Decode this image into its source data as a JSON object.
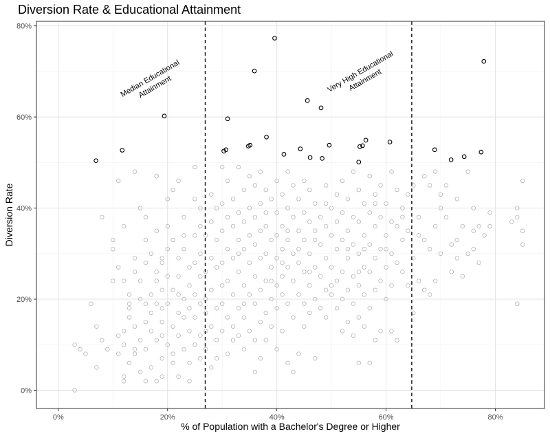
{
  "chart_data": {
    "type": "scatter",
    "title": "Diversion Rate & Educational Attainment",
    "xlabel": "% of Population with a Bachelor's Degree or Higher",
    "ylabel": "Diversion Rate",
    "xlim": [
      -0.04,
      0.89
    ],
    "ylim": [
      -0.04,
      0.81
    ],
    "x_ticks": [
      0,
      0.2,
      0.4,
      0.6,
      0.8
    ],
    "x_tick_labels": [
      "0%",
      "20%",
      "40%",
      "60%",
      "80%"
    ],
    "y_ticks": [
      0,
      0.2,
      0.4,
      0.6,
      0.8
    ],
    "y_tick_labels": [
      "0%",
      "20%",
      "40%",
      "60%",
      "80%"
    ],
    "grid": true,
    "reference_lines": [
      {
        "x": 0.269,
        "style": "dashed",
        "label": [
          "Median Educational",
          "Attainment"
        ]
      },
      {
        "x": 0.647,
        "style": "dashed",
        "label": [
          "Very High Educational",
          "Attainment"
        ]
      }
    ],
    "highlight_color": "#000000",
    "background_point_color": "#b3b3b3",
    "highlighted_points": [
      {
        "x": 0.069,
        "y": 0.504
      },
      {
        "x": 0.117,
        "y": 0.527
      },
      {
        "x": 0.194,
        "y": 0.602
      },
      {
        "x": 0.303,
        "y": 0.525
      },
      {
        "x": 0.307,
        "y": 0.528
      },
      {
        "x": 0.31,
        "y": 0.596
      },
      {
        "x": 0.348,
        "y": 0.536
      },
      {
        "x": 0.351,
        "y": 0.538
      },
      {
        "x": 0.359,
        "y": 0.701
      },
      {
        "x": 0.381,
        "y": 0.556
      },
      {
        "x": 0.396,
        "y": 0.773
      },
      {
        "x": 0.413,
        "y": 0.518
      },
      {
        "x": 0.443,
        "y": 0.53
      },
      {
        "x": 0.456,
        "y": 0.636
      },
      {
        "x": 0.461,
        "y": 0.511
      },
      {
        "x": 0.481,
        "y": 0.62
      },
      {
        "x": 0.483,
        "y": 0.509
      },
      {
        "x": 0.496,
        "y": 0.538
      },
      {
        "x": 0.55,
        "y": 0.501
      },
      {
        "x": 0.552,
        "y": 0.535
      },
      {
        "x": 0.557,
        "y": 0.537
      },
      {
        "x": 0.563,
        "y": 0.549
      },
      {
        "x": 0.607,
        "y": 0.545
      },
      {
        "x": 0.689,
        "y": 0.528
      },
      {
        "x": 0.719,
        "y": 0.506
      },
      {
        "x": 0.743,
        "y": 0.513
      },
      {
        "x": 0.774,
        "y": 0.523
      },
      {
        "x": 0.779,
        "y": 0.722
      }
    ],
    "background_points": [
      [
        0.03,
        0.0
      ],
      [
        0.03,
        0.1
      ],
      [
        0.04,
        0.09
      ],
      [
        0.05,
        0.08
      ],
      [
        0.06,
        0.19
      ],
      [
        0.07,
        0.14
      ],
      [
        0.07,
        0.05
      ],
      [
        0.08,
        0.11
      ],
      [
        0.08,
        0.38
      ],
      [
        0.09,
        0.09
      ],
      [
        0.1,
        0.24
      ],
      [
        0.1,
        0.31
      ],
      [
        0.11,
        0.27
      ],
      [
        0.11,
        0.08
      ],
      [
        0.11,
        0.46
      ],
      [
        0.12,
        0.03
      ],
      [
        0.12,
        0.02
      ],
      [
        0.12,
        0.1
      ],
      [
        0.12,
        0.13
      ],
      [
        0.12,
        0.36
      ],
      [
        0.13,
        0.21
      ],
      [
        0.13,
        0.18
      ],
      [
        0.13,
        0.16
      ],
      [
        0.13,
        0.06
      ],
      [
        0.14,
        0.48
      ],
      [
        0.14,
        0.29
      ],
      [
        0.14,
        0.26
      ],
      [
        0.14,
        0.14
      ],
      [
        0.14,
        0.08
      ],
      [
        0.15,
        0.4
      ],
      [
        0.15,
        0.2
      ],
      [
        0.15,
        0.11
      ],
      [
        0.15,
        0.04
      ],
      [
        0.16,
        0.38
      ],
      [
        0.16,
        0.33
      ],
      [
        0.16,
        0.28
      ],
      [
        0.16,
        0.02
      ],
      [
        0.16,
        0.15
      ],
      [
        0.16,
        0.09
      ],
      [
        0.17,
        0.3
      ],
      [
        0.17,
        0.21
      ],
      [
        0.17,
        0.17
      ],
      [
        0.17,
        0.13
      ],
      [
        0.17,
        0.05
      ],
      [
        0.18,
        0.47
      ],
      [
        0.18,
        0.35
      ],
      [
        0.18,
        0.26
      ],
      [
        0.18,
        0.24
      ],
      [
        0.18,
        0.19
      ],
      [
        0.18,
        0.11
      ],
      [
        0.19,
        0.28
      ],
      [
        0.19,
        0.22
      ],
      [
        0.19,
        0.18
      ],
      [
        0.19,
        0.15
      ],
      [
        0.19,
        0.12
      ],
      [
        0.19,
        0.07
      ],
      [
        0.19,
        0.03
      ],
      [
        0.2,
        0.42
      ],
      [
        0.2,
        0.36
      ],
      [
        0.2,
        0.31
      ],
      [
        0.2,
        0.19
      ],
      [
        0.2,
        0.1
      ],
      [
        0.21,
        0.44
      ],
      [
        0.21,
        0.33
      ],
      [
        0.21,
        0.22
      ],
      [
        0.21,
        0.14
      ],
      [
        0.21,
        0.06
      ],
      [
        0.22,
        0.46
      ],
      [
        0.22,
        0.29
      ],
      [
        0.22,
        0.25
      ],
      [
        0.22,
        0.17
      ],
      [
        0.22,
        0.12
      ],
      [
        0.22,
        0.03
      ],
      [
        0.23,
        0.38
      ],
      [
        0.23,
        0.31
      ],
      [
        0.23,
        0.2
      ],
      [
        0.23,
        0.16
      ],
      [
        0.23,
        0.09
      ],
      [
        0.24,
        0.27
      ],
      [
        0.24,
        0.23
      ],
      [
        0.24,
        0.18
      ],
      [
        0.24,
        0.13
      ],
      [
        0.24,
        0.02
      ],
      [
        0.25,
        0.49
      ],
      [
        0.25,
        0.42
      ],
      [
        0.25,
        0.34
      ],
      [
        0.25,
        0.28
      ],
      [
        0.25,
        0.21
      ],
      [
        0.25,
        0.16
      ],
      [
        0.25,
        0.1
      ],
      [
        0.26,
        0.36
      ],
      [
        0.26,
        0.3
      ],
      [
        0.26,
        0.25
      ],
      [
        0.26,
        0.19
      ],
      [
        0.26,
        0.12
      ],
      [
        0.26,
        0.07
      ],
      [
        0.27,
        0.34
      ],
      [
        0.27,
        0.26
      ],
      [
        0.27,
        0.17
      ],
      [
        0.27,
        0.09
      ],
      [
        0.28,
        0.43
      ],
      [
        0.28,
        0.37
      ],
      [
        0.28,
        0.29
      ],
      [
        0.28,
        0.22
      ],
      [
        0.28,
        0.14
      ],
      [
        0.28,
        0.05
      ],
      [
        0.29,
        0.4
      ],
      [
        0.29,
        0.33
      ],
      [
        0.29,
        0.27
      ],
      [
        0.29,
        0.18
      ],
      [
        0.29,
        0.11
      ],
      [
        0.3,
        0.49
      ],
      [
        0.3,
        0.35
      ],
      [
        0.3,
        0.28
      ],
      [
        0.3,
        0.23
      ],
      [
        0.3,
        0.19
      ],
      [
        0.3,
        0.13
      ],
      [
        0.31,
        0.38
      ],
      [
        0.31,
        0.31
      ],
      [
        0.31,
        0.24
      ],
      [
        0.31,
        0.16
      ],
      [
        0.31,
        0.08
      ],
      [
        0.32,
        0.42
      ],
      [
        0.32,
        0.36
      ],
      [
        0.32,
        0.29
      ],
      [
        0.32,
        0.21
      ],
      [
        0.32,
        0.14
      ],
      [
        0.32,
        0.11
      ],
      [
        0.33,
        0.49
      ],
      [
        0.33,
        0.39
      ],
      [
        0.33,
        0.33
      ],
      [
        0.33,
        0.26
      ],
      [
        0.33,
        0.18
      ],
      [
        0.33,
        0.12
      ],
      [
        0.34,
        0.44
      ],
      [
        0.34,
        0.37
      ],
      [
        0.34,
        0.31
      ],
      [
        0.34,
        0.23
      ],
      [
        0.34,
        0.16
      ],
      [
        0.34,
        0.09
      ],
      [
        0.35,
        0.47
      ],
      [
        0.35,
        0.4
      ],
      [
        0.35,
        0.34
      ],
      [
        0.35,
        0.28
      ],
      [
        0.35,
        0.21
      ],
      [
        0.35,
        0.13
      ],
      [
        0.36,
        0.45
      ],
      [
        0.36,
        0.38
      ],
      [
        0.36,
        0.32
      ],
      [
        0.36,
        0.25
      ],
      [
        0.36,
        0.19
      ],
      [
        0.36,
        0.04
      ],
      [
        0.37,
        0.48
      ],
      [
        0.37,
        0.41
      ],
      [
        0.37,
        0.35
      ],
      [
        0.37,
        0.29
      ],
      [
        0.37,
        0.22
      ],
      [
        0.37,
        0.15
      ],
      [
        0.37,
        0.07
      ],
      [
        0.38,
        0.44
      ],
      [
        0.38,
        0.36
      ],
      [
        0.38,
        0.3
      ],
      [
        0.38,
        0.24
      ],
      [
        0.38,
        0.17
      ],
      [
        0.38,
        0.11
      ],
      [
        0.39,
        0.42
      ],
      [
        0.39,
        0.33
      ],
      [
        0.39,
        0.27
      ],
      [
        0.39,
        0.2
      ],
      [
        0.39,
        0.14
      ],
      [
        0.4,
        0.46
      ],
      [
        0.4,
        0.39
      ],
      [
        0.4,
        0.34
      ],
      [
        0.4,
        0.29
      ],
      [
        0.4,
        0.23
      ],
      [
        0.4,
        0.18
      ],
      [
        0.4,
        0.09
      ],
      [
        0.41,
        0.43
      ],
      [
        0.41,
        0.36
      ],
      [
        0.41,
        0.31
      ],
      [
        0.41,
        0.25
      ],
      [
        0.41,
        0.21
      ],
      [
        0.41,
        0.13
      ],
      [
        0.42,
        0.48
      ],
      [
        0.42,
        0.4
      ],
      [
        0.42,
        0.33
      ],
      [
        0.42,
        0.27
      ],
      [
        0.42,
        0.19
      ],
      [
        0.42,
        0.06
      ],
      [
        0.43,
        0.45
      ],
      [
        0.43,
        0.38
      ],
      [
        0.43,
        0.3
      ],
      [
        0.43,
        0.24
      ],
      [
        0.43,
        0.16
      ],
      [
        0.43,
        0.04
      ],
      [
        0.44,
        0.42
      ],
      [
        0.44,
        0.35
      ],
      [
        0.44,
        0.28
      ],
      [
        0.44,
        0.21
      ],
      [
        0.44,
        0.08
      ],
      [
        0.45,
        0.46
      ],
      [
        0.45,
        0.39
      ],
      [
        0.45,
        0.33
      ],
      [
        0.45,
        0.26
      ],
      [
        0.45,
        0.19
      ],
      [
        0.45,
        0.14
      ],
      [
        0.46,
        0.44
      ],
      [
        0.46,
        0.37
      ],
      [
        0.46,
        0.3
      ],
      [
        0.46,
        0.23
      ],
      [
        0.46,
        0.17
      ],
      [
        0.47,
        0.41
      ],
      [
        0.47,
        0.35
      ],
      [
        0.47,
        0.27
      ],
      [
        0.47,
        0.2
      ],
      [
        0.47,
        0.07
      ],
      [
        0.48,
        0.38
      ],
      [
        0.48,
        0.32
      ],
      [
        0.48,
        0.25
      ],
      [
        0.48,
        0.18
      ],
      [
        0.49,
        0.45
      ],
      [
        0.49,
        0.36
      ],
      [
        0.49,
        0.29
      ],
      [
        0.49,
        0.22
      ],
      [
        0.49,
        0.16
      ],
      [
        0.5,
        0.4
      ],
      [
        0.5,
        0.34
      ],
      [
        0.5,
        0.27
      ],
      [
        0.5,
        0.21
      ],
      [
        0.51,
        0.43
      ],
      [
        0.51,
        0.37
      ],
      [
        0.51,
        0.31
      ],
      [
        0.51,
        0.24
      ],
      [
        0.51,
        0.18
      ],
      [
        0.52,
        0.46
      ],
      [
        0.52,
        0.39
      ],
      [
        0.52,
        0.33
      ],
      [
        0.52,
        0.26
      ],
      [
        0.52,
        0.2
      ],
      [
        0.52,
        0.13
      ],
      [
        0.53,
        0.42
      ],
      [
        0.53,
        0.35
      ],
      [
        0.53,
        0.29
      ],
      [
        0.53,
        0.22
      ],
      [
        0.53,
        0.15
      ],
      [
        0.54,
        0.48
      ],
      [
        0.54,
        0.38
      ],
      [
        0.54,
        0.32
      ],
      [
        0.54,
        0.25
      ],
      [
        0.54,
        0.19
      ],
      [
        0.54,
        0.12
      ],
      [
        0.55,
        0.44
      ],
      [
        0.55,
        0.37
      ],
      [
        0.55,
        0.3
      ],
      [
        0.55,
        0.23
      ],
      [
        0.55,
        0.16
      ],
      [
        0.55,
        0.06
      ],
      [
        0.56,
        0.41
      ],
      [
        0.56,
        0.34
      ],
      [
        0.56,
        0.27
      ],
      [
        0.56,
        0.21
      ],
      [
        0.56,
        0.14
      ],
      [
        0.57,
        0.47
      ],
      [
        0.57,
        0.39
      ],
      [
        0.57,
        0.32
      ],
      [
        0.57,
        0.26
      ],
      [
        0.57,
        0.18
      ],
      [
        0.57,
        0.06
      ],
      [
        0.58,
        0.43
      ],
      [
        0.58,
        0.36
      ],
      [
        0.58,
        0.29
      ],
      [
        0.58,
        0.22
      ],
      [
        0.58,
        0.11
      ],
      [
        0.59,
        0.45
      ],
      [
        0.59,
        0.38
      ],
      [
        0.59,
        0.31
      ],
      [
        0.59,
        0.24
      ],
      [
        0.59,
        0.13
      ],
      [
        0.6,
        0.41
      ],
      [
        0.6,
        0.34
      ],
      [
        0.6,
        0.27
      ],
      [
        0.6,
        0.2
      ],
      [
        0.61,
        0.48
      ],
      [
        0.61,
        0.37
      ],
      [
        0.61,
        0.3
      ],
      [
        0.61,
        0.23
      ],
      [
        0.61,
        0.13
      ],
      [
        0.62,
        0.44
      ],
      [
        0.62,
        0.36
      ],
      [
        0.62,
        0.28
      ],
      [
        0.62,
        0.11
      ],
      [
        0.63,
        0.4
      ],
      [
        0.63,
        0.33
      ],
      [
        0.63,
        0.26
      ],
      [
        0.64,
        0.43
      ],
      [
        0.64,
        0.35
      ],
      [
        0.64,
        0.23
      ],
      [
        0.65,
        0.45
      ],
      [
        0.65,
        0.29
      ],
      [
        0.65,
        0.17
      ],
      [
        0.66,
        0.38
      ],
      [
        0.66,
        0.24
      ],
      [
        0.67,
        0.47
      ],
      [
        0.67,
        0.33
      ],
      [
        0.67,
        0.22
      ],
      [
        0.68,
        0.45
      ],
      [
        0.68,
        0.31
      ],
      [
        0.68,
        0.21
      ],
      [
        0.69,
        0.48
      ],
      [
        0.69,
        0.36
      ],
      [
        0.69,
        0.24
      ],
      [
        0.7,
        0.43
      ],
      [
        0.7,
        0.3
      ],
      [
        0.71,
        0.45
      ],
      [
        0.71,
        0.38
      ],
      [
        0.72,
        0.32
      ],
      [
        0.72,
        0.26
      ],
      [
        0.73,
        0.42
      ],
      [
        0.73,
        0.29
      ],
      [
        0.74,
        0.36
      ],
      [
        0.74,
        0.25
      ],
      [
        0.75,
        0.48
      ],
      [
        0.75,
        0.3
      ],
      [
        0.76,
        0.4
      ],
      [
        0.76,
        0.31
      ],
      [
        0.77,
        0.36
      ],
      [
        0.77,
        0.28
      ],
      [
        0.78,
        0.34
      ],
      [
        0.79,
        0.39
      ],
      [
        0.79,
        0.36
      ],
      [
        0.83,
        0.37
      ],
      [
        0.84,
        0.38
      ],
      [
        0.84,
        0.19
      ],
      [
        0.84,
        0.4
      ],
      [
        0.85,
        0.32
      ],
      [
        0.85,
        0.35
      ],
      [
        0.85,
        0.46
      ],
      [
        0.13,
        0.19
      ],
      [
        0.2,
        0.25
      ],
      [
        0.27,
        0.2
      ],
      [
        0.09,
        0.09
      ],
      [
        0.1,
        0.33
      ],
      [
        0.11,
        0.12
      ],
      [
        0.14,
        0.09
      ],
      [
        0.15,
        0.24
      ],
      [
        0.16,
        0.19
      ],
      [
        0.18,
        0.02
      ],
      [
        0.19,
        0.29
      ],
      [
        0.21,
        0.08
      ],
      [
        0.23,
        0.34
      ],
      [
        0.24,
        0.06
      ],
      [
        0.26,
        0.4
      ],
      [
        0.27,
        0.13
      ],
      [
        0.29,
        0.07
      ],
      [
        0.3,
        0.41
      ],
      [
        0.31,
        0.46
      ],
      [
        0.33,
        0.3
      ],
      [
        0.34,
        0.19
      ],
      [
        0.36,
        0.11
      ],
      [
        0.38,
        0.39
      ],
      [
        0.39,
        0.24
      ],
      [
        0.41,
        0.28
      ],
      [
        0.42,
        0.35
      ],
      [
        0.44,
        0.31
      ],
      [
        0.46,
        0.26
      ],
      [
        0.47,
        0.33
      ],
      [
        0.49,
        0.41
      ],
      [
        0.5,
        0.23
      ],
      [
        0.53,
        0.31
      ],
      [
        0.55,
        0.26
      ],
      [
        0.56,
        0.31
      ],
      [
        0.58,
        0.41
      ],
      [
        0.6,
        0.31
      ],
      [
        0.63,
        0.38
      ],
      [
        0.66,
        0.34
      ],
      [
        0.7,
        0.4
      ],
      [
        0.73,
        0.33
      ],
      [
        0.76,
        0.35
      ],
      [
        0.12,
        0.24
      ],
      [
        0.22,
        0.21
      ]
    ]
  }
}
